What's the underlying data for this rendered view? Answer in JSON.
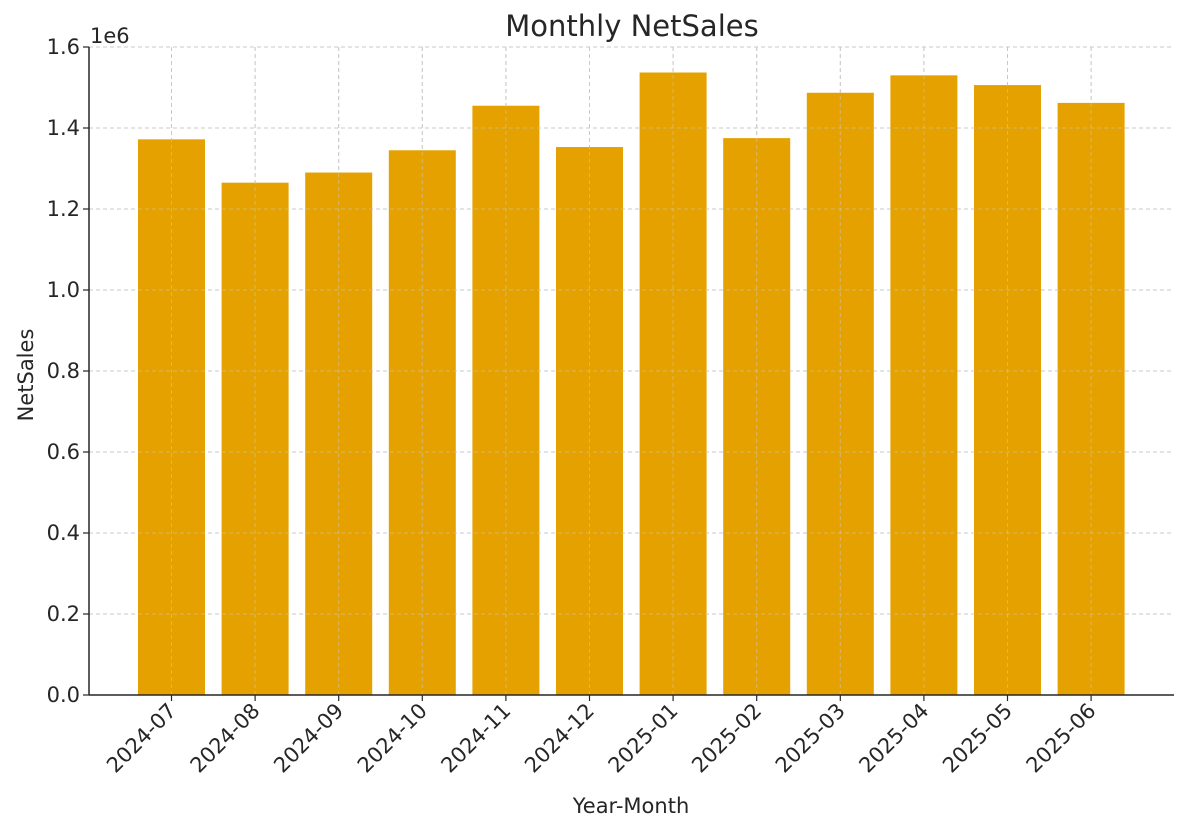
{
  "chart_data": {
    "type": "bar",
    "title": "Monthly NetSales",
    "xlabel": "Year-Month",
    "ylabel": "NetSales",
    "y_scale_label": "1e6",
    "categories": [
      "2024-07",
      "2024-08",
      "2024-09",
      "2024-10",
      "2024-11",
      "2024-12",
      "2025-01",
      "2025-02",
      "2025-03",
      "2025-04",
      "2025-05",
      "2025-06"
    ],
    "values": [
      1372000,
      1265000,
      1290000,
      1345000,
      1455000,
      1353000,
      1537000,
      1375000,
      1487000,
      1530000,
      1506000,
      1462000
    ],
    "ylim": [
      0,
      1600000
    ],
    "yticks": [
      0,
      200000,
      400000,
      600000,
      800000,
      1000000,
      1200000,
      1400000,
      1600000
    ],
    "ytick_labels": [
      "0.0",
      "0.2",
      "0.4",
      "0.6",
      "0.8",
      "1.0",
      "1.2",
      "1.4",
      "1.6"
    ],
    "grid": true,
    "bar_color": "#E5A100",
    "grid_color": "#c8c8c8",
    "axis_color": "#262626"
  }
}
